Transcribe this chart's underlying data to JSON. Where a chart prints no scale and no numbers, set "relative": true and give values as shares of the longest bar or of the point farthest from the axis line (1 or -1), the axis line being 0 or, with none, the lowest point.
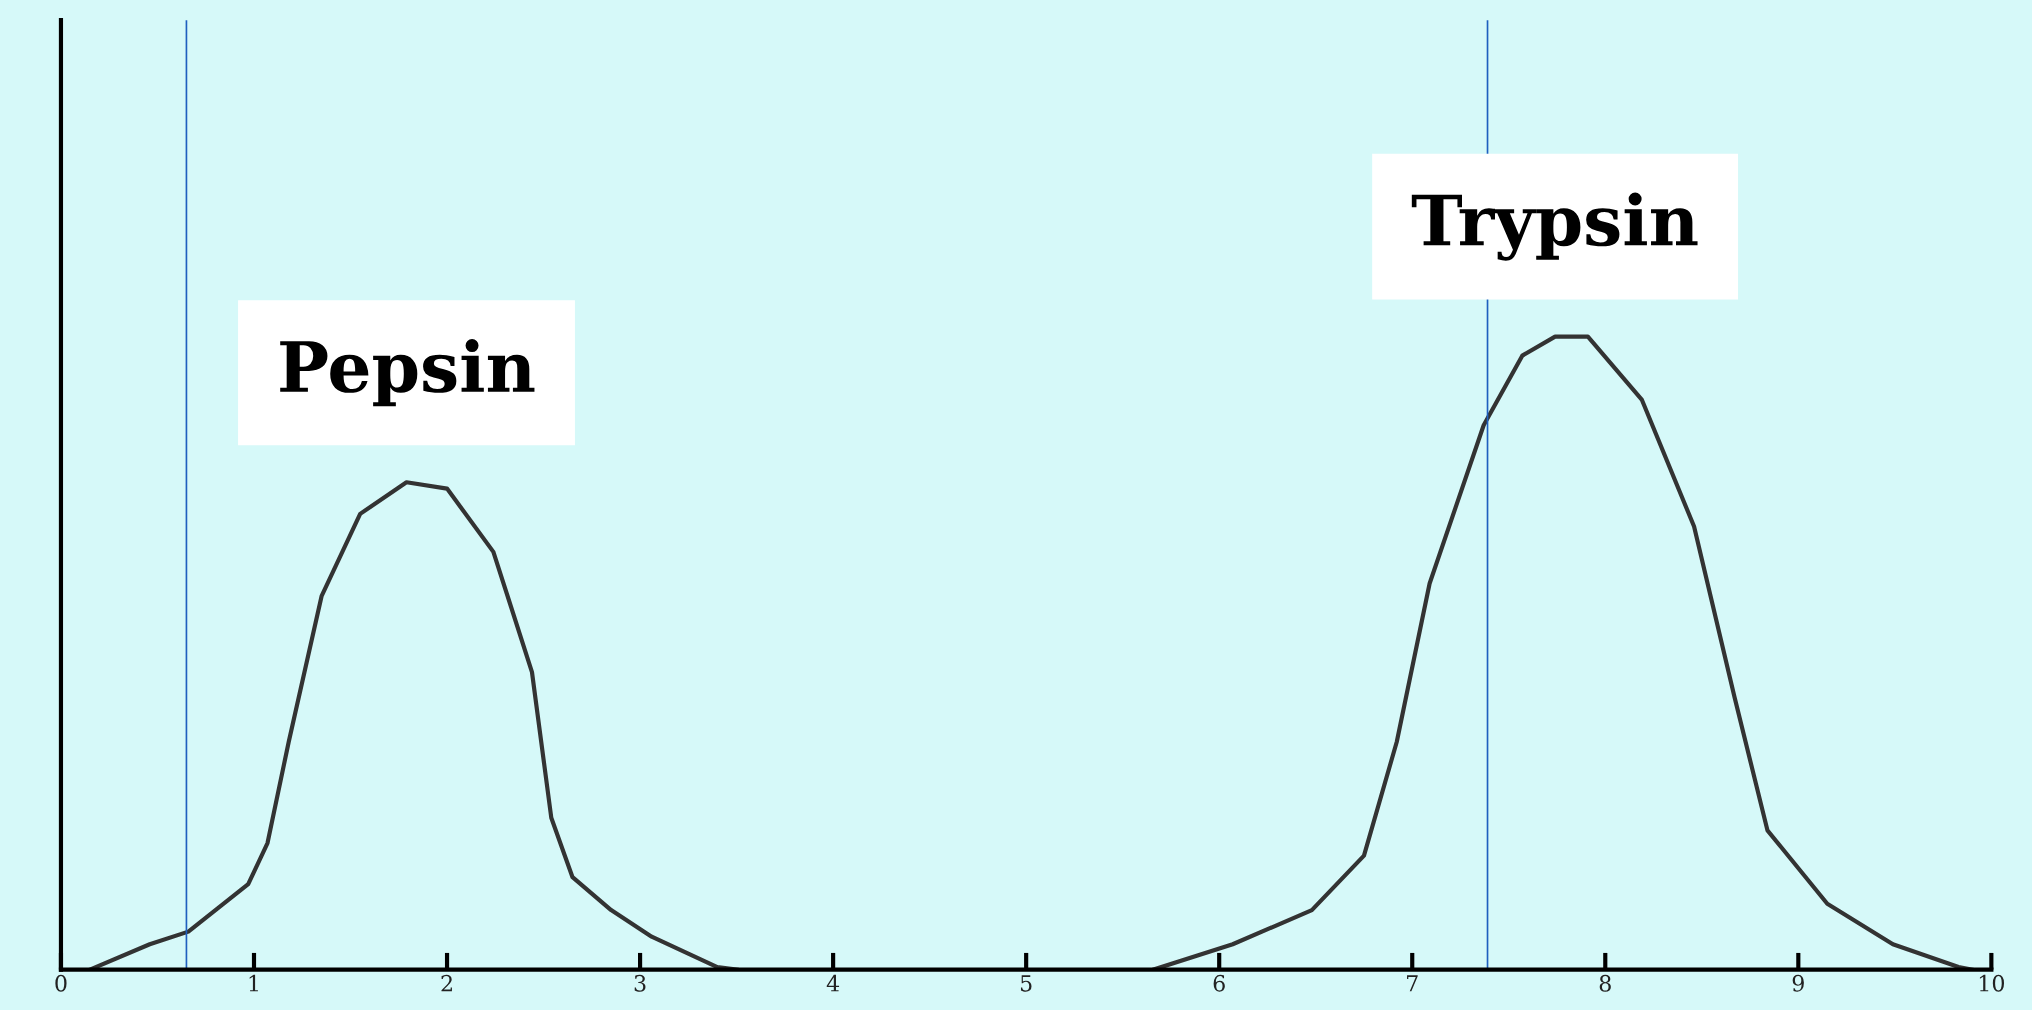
{
  "chart_data": {
    "type": "line",
    "relative": true,
    "xlim": [
      0,
      10
    ],
    "xticks": [
      0,
      1,
      2,
      3,
      4,
      5,
      6,
      7,
      8,
      9,
      10
    ],
    "grid": false,
    "legend": false,
    "marker": "none",
    "line_style": "solid",
    "series": [
      {
        "name": "Pepsin",
        "color": "#333333",
        "x": [
          0.15,
          0.46,
          0.66,
          0.97,
          1.07,
          1.18,
          1.35,
          1.55,
          1.79,
          2.0,
          2.24,
          2.44,
          2.54,
          2.65,
          2.85,
          3.06,
          3.4,
          3.5
        ],
        "values": [
          0,
          0.04,
          0.06,
          0.135,
          0.2,
          0.36,
          0.59,
          0.72,
          0.77,
          0.76,
          0.66,
          0.47,
          0.24,
          0.146,
          0.094,
          0.052,
          0.004,
          0
        ]
      },
      {
        "name": "Trypsin",
        "color": "#333333",
        "x": [
          5.66,
          6.07,
          6.48,
          6.75,
          6.92,
          7.09,
          7.37,
          7.57,
          7.74,
          7.91,
          8.19,
          8.46,
          8.67,
          8.84,
          9.15,
          9.49,
          9.83,
          9.9
        ],
        "values": [
          0,
          0.04,
          0.094,
          0.18,
          0.36,
          0.61,
          0.86,
          0.97,
          1.0,
          1.0,
          0.9,
          0.7,
          0.43,
          0.22,
          0.104,
          0.04,
          0.004,
          0
        ]
      }
    ],
    "ref_lines": [
      {
        "axis": "x",
        "value": 0.65,
        "color": "#1f5fbf"
      },
      {
        "axis": "x",
        "value": 7.39,
        "color": "#1f5fbf"
      }
    ]
  }
}
